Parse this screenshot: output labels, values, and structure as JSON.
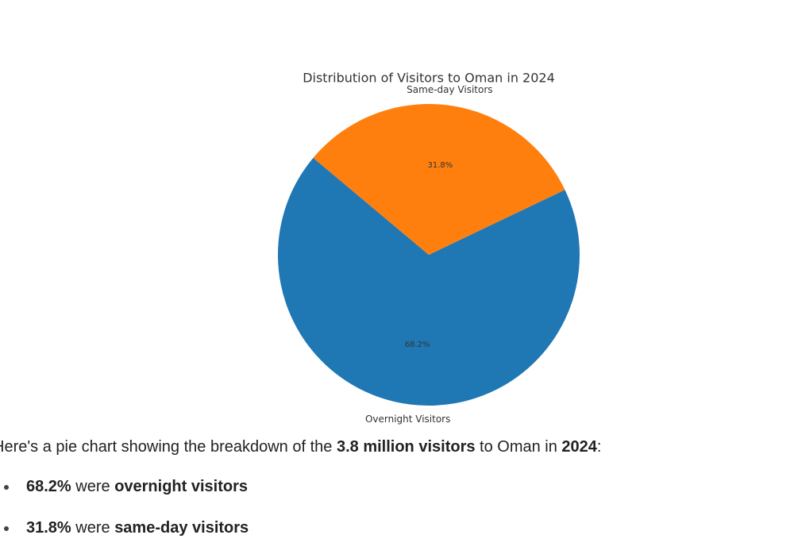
{
  "chart_data": {
    "type": "pie",
    "title": "Distribution of Visitors to Oman in 2024",
    "categories": [
      "Overnight Visitors",
      "Same-day Visitors"
    ],
    "values": [
      68.2,
      31.8
    ],
    "value_labels": [
      "68.2%",
      "31.8%"
    ],
    "colors": [
      "#1f77b4",
      "#ff7f0e"
    ]
  },
  "message": {
    "intro": [
      "Here's a pie chart showing the breakdown of the ",
      "3.8 million visitors",
      " to Oman in ",
      "2024",
      ":"
    ],
    "bullets": [
      [
        "68.2%",
        " were ",
        "overnight visitors"
      ],
      [
        "31.8%",
        " were ",
        "same-day visitors"
      ]
    ]
  }
}
